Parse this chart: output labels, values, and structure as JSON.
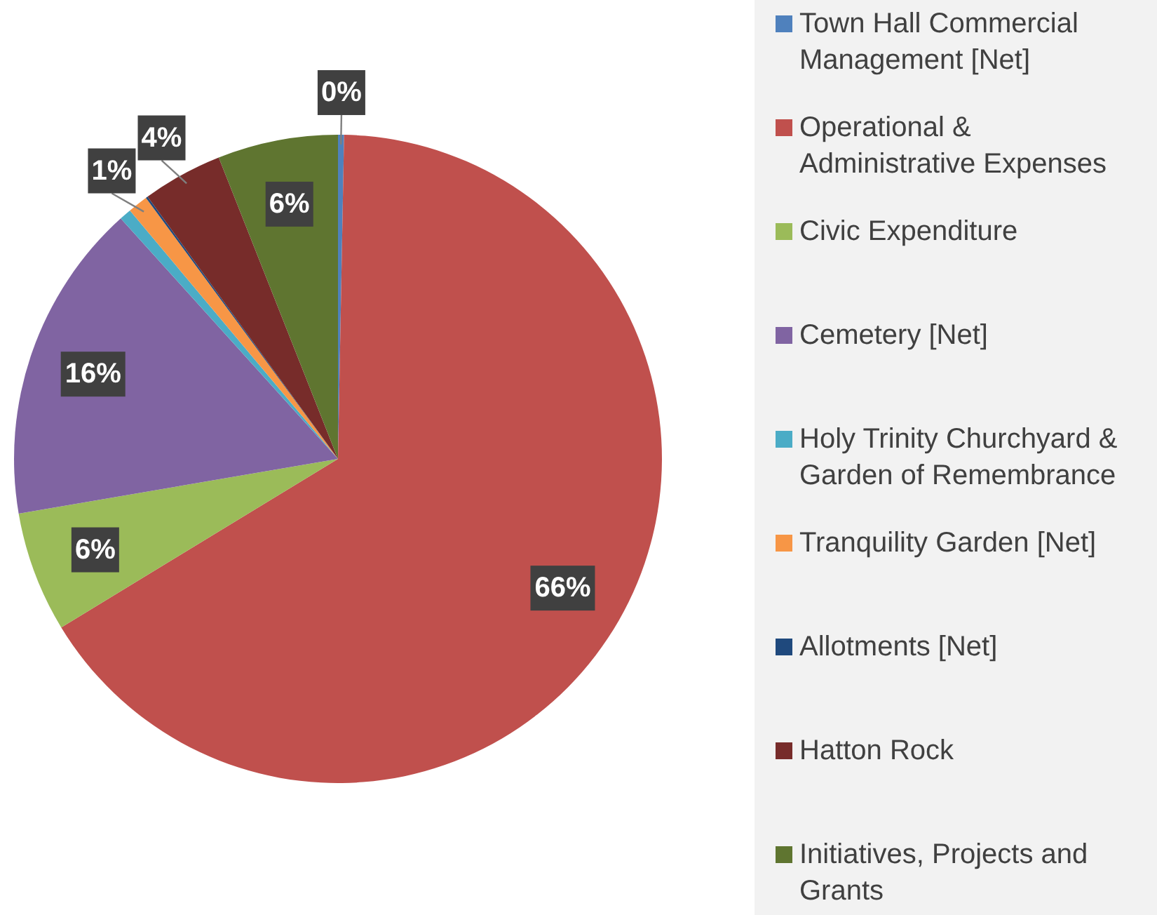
{
  "chart_data": {
    "type": "pie",
    "legend": "right",
    "categories": [
      "Town Hall Commercial Management [Net]",
      "Operational & Administrative Expenses",
      "Civic Expenditure",
      "Cemetery [Net]",
      "Holy Trinity Churchyard & Garden of Remembrance",
      "Tranquility Garden [Net]",
      "Allotments [Net]",
      "Hatton Rock",
      "Initiatives, Projects and Grants"
    ],
    "values": [
      0.3,
      66,
      6,
      16,
      0.6,
      1,
      0.1,
      4,
      6
    ],
    "value_labels": [
      "0%",
      "66%",
      "6%",
      "16%",
      null,
      "1%",
      null,
      "4%",
      "6%"
    ],
    "colors": [
      "#4f81bd",
      "#c0504d",
      "#9bbb59",
      "#8064a2",
      "#4bacc6",
      "#f79646",
      "#1f497d",
      "#772c2a",
      "#5f7530"
    ]
  }
}
